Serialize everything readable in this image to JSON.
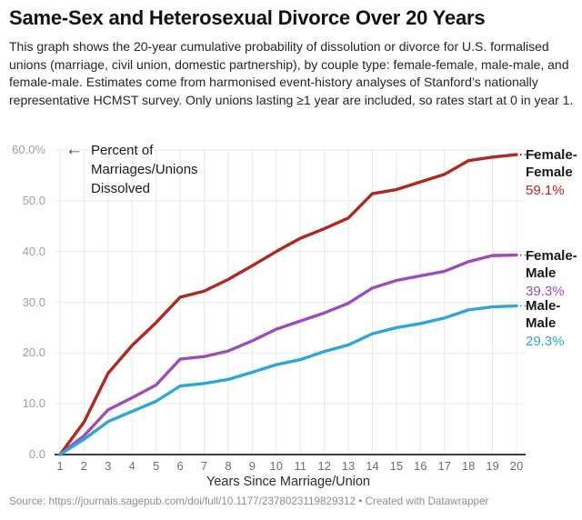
{
  "title": "Same-Sex and Heterosexual Divorce Over 20 Years",
  "description": "This graph shows the 20-year cumulative probability of dissolution or divorce for U.S. formalised unions (marriage, civil union, domestic partnership), by couple type: female-female, male-male, and female-male. Estimates come from harmonised event-history analyses of Stanford’s nationally representative HCMST survey. Only unions lasting ≥1 year are included, so rates start at 0 in year 1.",
  "annotation": {
    "arrow": "←",
    "text": "Percent of Marriages/Unions Dissolved"
  },
  "chart_data": {
    "type": "line",
    "x": [
      1,
      2,
      3,
      4,
      5,
      6,
      7,
      8,
      9,
      10,
      11,
      12,
      13,
      14,
      15,
      16,
      17,
      18,
      19,
      20
    ],
    "xlabel": "Years Since Marriage/Union",
    "ylabel": "Percent of Marriages/Unions Dissolved",
    "ylim": [
      0,
      60
    ],
    "grid": true,
    "legend_position": "right-edge-labels",
    "yticks": [
      {
        "value": 60,
        "label": "60.0%"
      },
      {
        "value": 50,
        "label": "50.0"
      },
      {
        "value": 40,
        "label": "40.0"
      },
      {
        "value": 30,
        "label": "30.0"
      },
      {
        "value": 20,
        "label": "20.0"
      },
      {
        "value": 10,
        "label": "10.0"
      },
      {
        "value": 0,
        "label": "0.0"
      }
    ],
    "series": [
      {
        "name": "Female-Female",
        "name_lines": [
          "Female-",
          "Female"
        ],
        "end_label": "59.1%",
        "color": "#b2271e",
        "values": [
          0,
          6.4,
          16.0,
          21.5,
          26.0,
          31.0,
          32.2,
          34.5,
          37.2,
          40.0,
          42.6,
          44.5,
          46.6,
          51.4,
          52.2,
          53.7,
          55.2,
          57.9,
          58.6,
          59.1
        ]
      },
      {
        "name": "Female-Male",
        "name_lines": [
          "Female-",
          "Male"
        ],
        "end_label": "39.3%",
        "color": "#9d4dbb",
        "values": [
          0,
          3.7,
          8.8,
          11.2,
          13.7,
          18.8,
          19.3,
          20.4,
          22.4,
          24.7,
          26.3,
          27.9,
          29.8,
          32.8,
          34.3,
          35.2,
          36.1,
          38.0,
          39.2,
          39.3
        ]
      },
      {
        "name": "Male-Male",
        "name_lines": [
          "Male-",
          "Male"
        ],
        "end_label": "29.3%",
        "color": "#2ea6da",
        "values": [
          0,
          3.0,
          6.5,
          8.5,
          10.5,
          13.5,
          14.0,
          14.8,
          16.2,
          17.7,
          18.7,
          20.3,
          21.6,
          23.8,
          25.0,
          25.8,
          26.9,
          28.5,
          29.1,
          29.3
        ]
      }
    ]
  },
  "source": {
    "label": "Source:",
    "url": "https://journals.sagepub.com/doi/full/10.1177/2378023119829312",
    "separator": "•",
    "suffix": "Created with Datawrapper"
  },
  "colors": {
    "grid": "#e9e9e9",
    "baseline": "#3d3d3d",
    "x_axis_text": "#6e6e6e",
    "y_axis_text": "#9f9f9f",
    "text": "#1d1d1d",
    "female_female": "#b2271e",
    "female_male": "#9d4dbb",
    "male_male": "#2ea6da"
  }
}
